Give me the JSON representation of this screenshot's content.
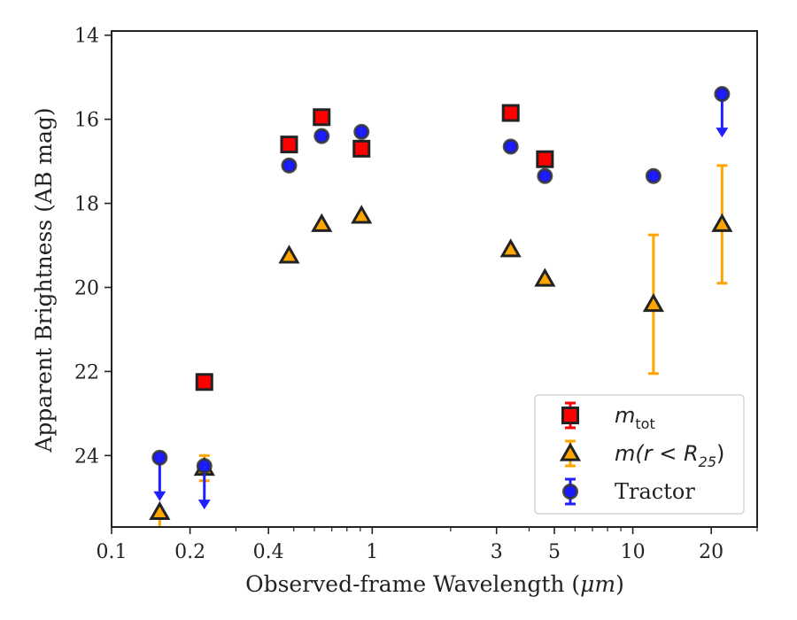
{
  "chart_data": {
    "type": "scatter",
    "xlabel_prefix": "Observed-frame Wavelength (",
    "xlabel_unit": "μm",
    "xlabel_suffix": ")",
    "ylabel": "Apparent Brightness (AB mag)",
    "xscale": "log",
    "xlim": [
      0.1,
      30
    ],
    "ylim": [
      25.7,
      13.9
    ],
    "y_inverted": true,
    "grid": false,
    "legend_position": "lower-right",
    "x_ticks": [
      {
        "value": 0.1,
        "label": "0.1"
      },
      {
        "value": 0.2,
        "label": "0.2"
      },
      {
        "value": 0.4,
        "label": "0.4"
      },
      {
        "value": 1,
        "label": "1"
      },
      {
        "value": 3,
        "label": "3"
      },
      {
        "value": 5,
        "label": "5"
      },
      {
        "value": 10,
        "label": "10"
      },
      {
        "value": 20,
        "label": "20"
      }
    ],
    "y_ticks": [
      {
        "value": 14,
        "label": "14"
      },
      {
        "value": 16,
        "label": "16"
      },
      {
        "value": 18,
        "label": "18"
      },
      {
        "value": 20,
        "label": "20"
      },
      {
        "value": 22,
        "label": "22"
      },
      {
        "value": 24,
        "label": "24"
      }
    ],
    "series": [
      {
        "key": "mtot",
        "legend": {
          "main": "m",
          "sub": "tot",
          "open": "",
          "close": ""
        },
        "marker": "square",
        "color": "#ff0000",
        "edge": "#222222",
        "err_color": "#ff0000",
        "points": [
          {
            "x": 0.227,
            "y": 22.25
          },
          {
            "x": 0.48,
            "y": 16.6
          },
          {
            "x": 0.64,
            "y": 15.95
          },
          {
            "x": 0.91,
            "y": 16.7
          },
          {
            "x": 3.4,
            "y": 15.85
          },
          {
            "x": 4.6,
            "y": 16.95
          }
        ]
      },
      {
        "key": "mr25",
        "legend": {
          "main": "m(r < R",
          "sub": "25",
          "open": "",
          "close": ")"
        },
        "marker": "triangle",
        "color": "#ffa500",
        "edge": "#222222",
        "err_color": "#ffa500",
        "points": [
          {
            "x": 0.153,
            "y": 25.35,
            "lower_limit_down": true
          },
          {
            "x": 0.227,
            "y": 24.3,
            "yerr": 0.3
          },
          {
            "x": 0.48,
            "y": 19.25
          },
          {
            "x": 0.64,
            "y": 18.5
          },
          {
            "x": 0.91,
            "y": 18.3
          },
          {
            "x": 3.4,
            "y": 19.1
          },
          {
            "x": 4.6,
            "y": 19.8
          },
          {
            "x": 12.0,
            "y": 20.4,
            "yerr": 1.65
          },
          {
            "x": 22.0,
            "y": 18.5,
            "yerr": 1.4
          }
        ]
      },
      {
        "key": "tractor",
        "legend": {
          "main": "Tractor",
          "sub": "",
          "open": "",
          "close": ""
        },
        "marker": "circle",
        "color": "#1a1aff",
        "edge": "#333333",
        "err_color": "#2020ff",
        "points": [
          {
            "x": 0.153,
            "y": 24.05,
            "upper_limit": true
          },
          {
            "x": 0.227,
            "y": 24.25,
            "upper_limit": true
          },
          {
            "x": 0.48,
            "y": 17.1
          },
          {
            "x": 0.64,
            "y": 16.4
          },
          {
            "x": 0.91,
            "y": 16.3
          },
          {
            "x": 3.4,
            "y": 16.65
          },
          {
            "x": 4.6,
            "y": 17.35
          },
          {
            "x": 12.0,
            "y": 17.35
          },
          {
            "x": 22.0,
            "y": 15.4,
            "upper_limit": true
          }
        ]
      }
    ]
  }
}
